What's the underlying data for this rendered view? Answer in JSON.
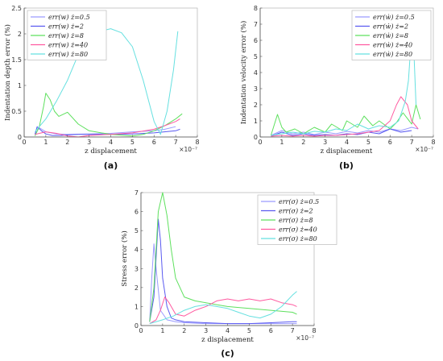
{
  "colors": {
    "s05": "#9a9aff",
    "s2": "#5a5af0",
    "s8": "#5ee05e",
    "s40": "#ff5aa0",
    "s80": "#66e0e0",
    "axis": "#555555",
    "frame": "#bbbbbb"
  },
  "chart_data": [
    {
      "type": "line",
      "caption": "(a)",
      "xlabel": "z displacement",
      "x_exponent": "×10⁻⁷",
      "ylabel": "Indentation depth error (%)",
      "xlim": [
        0,
        8
      ],
      "ylim": [
        0,
        2.5
      ],
      "xticks": [
        "0",
        "1",
        "2",
        "3",
        "4",
        "5",
        "6",
        "7",
        "8"
      ],
      "yticks": [
        "0",
        "0.5",
        "1",
        "1.5",
        "2",
        "2.5"
      ],
      "legend_position": "top-left",
      "series": [
        {
          "name": "err(w) ż=0.5",
          "color": "#9a9aff",
          "x": [
            0.5,
            0.7,
            1.0,
            1.5,
            2.0,
            3.0,
            4.0,
            5.0,
            6.0,
            6.5,
            7.0
          ],
          "y": [
            0.05,
            0.18,
            0.1,
            0.06,
            0.05,
            0.06,
            0.07,
            0.1,
            0.12,
            0.15,
            0.2
          ]
        },
        {
          "name": "err(w) ż=2",
          "color": "#5a5af0",
          "x": [
            0.5,
            0.6,
            0.8,
            1.0,
            1.3,
            1.7,
            2.0,
            2.5,
            3.0,
            4.0,
            5.0,
            6.0,
            7.0,
            7.2
          ],
          "y": [
            0.05,
            0.2,
            0.12,
            0.06,
            0.03,
            0.03,
            0.04,
            0.05,
            0.05,
            0.05,
            0.06,
            0.08,
            0.12,
            0.15
          ]
        },
        {
          "name": "err(w) ż=8",
          "color": "#5ee05e",
          "x": [
            0.5,
            0.7,
            0.9,
            1.0,
            1.2,
            1.4,
            1.6,
            2.0,
            2.5,
            3.0,
            4.0,
            5.0,
            5.5,
            6.0,
            6.5,
            7.0,
            7.3
          ],
          "y": [
            0.02,
            0.2,
            0.6,
            0.85,
            0.72,
            0.5,
            0.4,
            0.48,
            0.25,
            0.12,
            0.05,
            0.02,
            0.05,
            0.12,
            0.22,
            0.35,
            0.45
          ]
        },
        {
          "name": "err(w) ż=40",
          "color": "#ff5aa0",
          "x": [
            0.5,
            0.8,
            1.0,
            1.5,
            2.0,
            2.5,
            3.0,
            4.0,
            5.0,
            6.0,
            6.5,
            7.0,
            7.2
          ],
          "y": [
            0.05,
            0.08,
            0.1,
            0.07,
            0.02,
            0.0,
            0.03,
            0.05,
            0.08,
            0.15,
            0.22,
            0.3,
            0.35
          ]
        },
        {
          "name": "err(w) ż=80",
          "color": "#66e0e0",
          "x": [
            0.5,
            1.0,
            1.5,
            2.0,
            2.5,
            3.0,
            3.5,
            4.0,
            4.5,
            5.0,
            5.5,
            6.0,
            6.3,
            6.6,
            6.9,
            7.1
          ],
          "y": [
            0.1,
            0.35,
            0.7,
            1.1,
            1.6,
            1.9,
            2.05,
            2.1,
            2.02,
            1.75,
            1.1,
            0.3,
            0.05,
            0.5,
            1.3,
            2.05
          ]
        }
      ]
    },
    {
      "type": "line",
      "caption": "(b)",
      "xlabel": "z displacement",
      "x_exponent": "×10⁻⁷",
      "ylabel": "Indentation velocity error (%)",
      "xlim": [
        0,
        8
      ],
      "ylim": [
        0,
        8
      ],
      "xticks": [
        "0",
        "1",
        "2",
        "3",
        "4",
        "5",
        "6",
        "7",
        "8"
      ],
      "yticks": [
        "0",
        "1",
        "2",
        "3",
        "4",
        "5",
        "6",
        "7",
        "8"
      ],
      "legend_position": "top-right",
      "series": [
        {
          "name": "err(ẇ) ż=0.5",
          "color": "#9a9aff",
          "x": [
            0.5,
            1.0,
            1.5,
            2.0,
            2.5,
            3.0,
            3.5,
            4.0,
            4.5,
            5.0,
            5.5,
            6.0,
            6.5,
            7.0,
            7.3
          ],
          "y": [
            0.1,
            0.4,
            0.2,
            0.3,
            0.15,
            0.3,
            0.2,
            0.35,
            0.25,
            0.4,
            0.3,
            0.5,
            0.4,
            0.6,
            0.5
          ]
        },
        {
          "name": "err(ẇ) ż=2",
          "color": "#5a5af0",
          "x": [
            0.5,
            1.0,
            1.5,
            2.0,
            2.5,
            3.0,
            3.5,
            4.0,
            4.5,
            5.0,
            5.5,
            6.0,
            6.5,
            7.0
          ],
          "y": [
            0.05,
            0.3,
            0.1,
            0.2,
            0.1,
            0.15,
            0.1,
            0.2,
            0.15,
            0.3,
            0.2,
            0.5,
            0.3,
            0.4
          ]
        },
        {
          "name": "err(ẇ) ż=8",
          "color": "#5ee05e",
          "x": [
            0.5,
            0.8,
            1.0,
            1.2,
            1.6,
            2.0,
            2.5,
            3.0,
            3.3,
            3.8,
            4.0,
            4.5,
            4.8,
            5.2,
            5.5,
            6.0,
            6.3,
            6.6,
            7.0,
            7.2,
            7.4
          ],
          "y": [
            0.1,
            1.4,
            0.6,
            0.3,
            0.5,
            0.2,
            0.6,
            0.3,
            0.8,
            0.4,
            1.0,
            0.6,
            1.3,
            0.7,
            1.0,
            0.5,
            0.9,
            1.5,
            0.8,
            2.0,
            1.1
          ]
        },
        {
          "name": "err(ẇ) ż=40",
          "color": "#ff5aa0",
          "x": [
            0.5,
            1.0,
            1.5,
            2.0,
            2.5,
            3.0,
            3.5,
            4.0,
            4.5,
            5.0,
            5.5,
            6.0,
            6.3,
            6.5,
            6.8,
            7.0,
            7.3
          ],
          "y": [
            0.05,
            0.1,
            0.05,
            0.1,
            0.05,
            0.1,
            0.1,
            0.15,
            0.2,
            0.3,
            0.4,
            1.0,
            2.0,
            2.5,
            2.0,
            1.0,
            0.5
          ]
        },
        {
          "name": "err(ẇ) ż=80",
          "color": "#66e0e0",
          "x": [
            0.5,
            1.0,
            1.5,
            2.0,
            2.5,
            3.0,
            3.5,
            4.0,
            4.5,
            5.0,
            5.5,
            6.0,
            6.4,
            6.7,
            6.85,
            6.95,
            7.05,
            7.2
          ],
          "y": [
            0.1,
            0.2,
            0.3,
            0.2,
            0.35,
            0.3,
            0.5,
            0.4,
            0.8,
            0.5,
            0.7,
            0.6,
            1.0,
            2.2,
            3.5,
            5.5,
            7.0,
            2.0
          ]
        }
      ]
    },
    {
      "type": "line",
      "caption": "(c)",
      "xlabel": "z displacement",
      "x_exponent": "×10⁻⁷",
      "ylabel": "Stress error (%)",
      "xlim": [
        0,
        8
      ],
      "ylim": [
        0,
        7
      ],
      "xticks": [
        "0",
        "1",
        "2",
        "3",
        "4",
        "5",
        "6",
        "7",
        "8"
      ],
      "yticks": [
        "0",
        "1",
        "2",
        "3",
        "4",
        "5",
        "6",
        "7"
      ],
      "legend_position": "top-right",
      "series": [
        {
          "name": "err(σ) ż=0.5",
          "color": "#9a9aff",
          "x": [
            0.4,
            0.5,
            0.6,
            0.7,
            0.9,
            1.2,
            1.6,
            2.0,
            3.0,
            4.0,
            5.0,
            6.0,
            7.0,
            7.2
          ],
          "y": [
            0.2,
            2.5,
            4.3,
            3.0,
            0.8,
            0.3,
            0.2,
            0.15,
            0.1,
            0.1,
            0.1,
            0.1,
            0.1,
            0.1
          ]
        },
        {
          "name": "err(σ) ż=2",
          "color": "#5a5af0",
          "x": [
            0.4,
            0.6,
            0.8,
            0.9,
            1.0,
            1.2,
            1.4,
            1.6,
            2.0,
            3.0,
            4.0,
            5.0,
            6.0,
            7.0,
            7.2
          ],
          "y": [
            0.2,
            1.5,
            5.6,
            4.5,
            2.5,
            1.0,
            0.4,
            0.3,
            0.2,
            0.15,
            0.1,
            0.1,
            0.15,
            0.2,
            0.2
          ]
        },
        {
          "name": "err(σ) ż=8",
          "color": "#5ee05e",
          "x": [
            0.4,
            0.6,
            0.8,
            1.0,
            1.2,
            1.4,
            1.6,
            2.0,
            2.5,
            3.0,
            3.5,
            4.0,
            5.0,
            6.0,
            7.0,
            7.2
          ],
          "y": [
            0.2,
            2.0,
            6.0,
            7.0,
            5.8,
            4.0,
            2.5,
            1.5,
            1.3,
            1.2,
            1.1,
            1.0,
            0.9,
            0.8,
            0.7,
            0.6
          ]
        },
        {
          "name": "err(σ) ż=40",
          "color": "#ff5aa0",
          "x": [
            0.4,
            0.7,
            0.9,
            1.1,
            1.3,
            1.6,
            2.0,
            2.5,
            3.0,
            3.5,
            4.0,
            4.5,
            5.0,
            5.5,
            6.0,
            6.5,
            7.0,
            7.2
          ],
          "y": [
            0.1,
            0.3,
            0.8,
            1.5,
            1.2,
            0.6,
            0.5,
            0.8,
            1.0,
            1.3,
            1.4,
            1.3,
            1.4,
            1.3,
            1.4,
            1.2,
            1.1,
            1.0
          ]
        },
        {
          "name": "err(σ) ż=80",
          "color": "#66e0e0",
          "x": [
            0.4,
            1.0,
            1.5,
            2.0,
            2.5,
            3.0,
            3.5,
            4.0,
            4.5,
            5.0,
            5.5,
            6.0,
            6.5,
            7.0,
            7.2
          ],
          "y": [
            0.1,
            0.3,
            0.5,
            0.8,
            1.0,
            1.1,
            1.0,
            0.9,
            0.7,
            0.5,
            0.4,
            0.6,
            1.0,
            1.6,
            1.8
          ]
        }
      ]
    }
  ]
}
